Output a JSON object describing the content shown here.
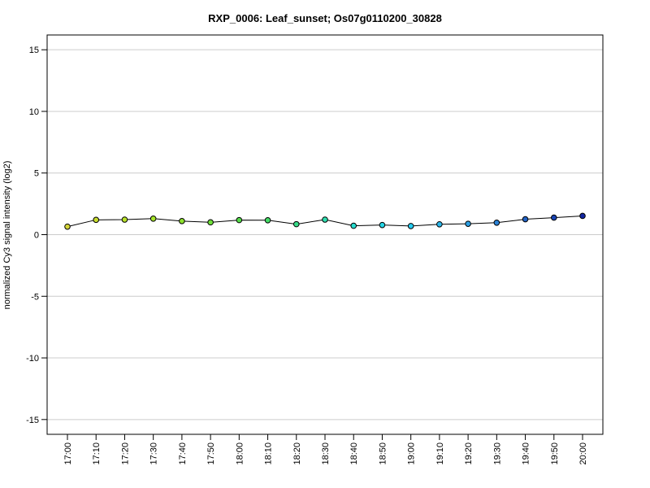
{
  "chart_data": {
    "type": "line",
    "title": "RXP_0006: Leaf_sunset; Os07g0110200_30828",
    "xlabel": "",
    "ylabel": "normalized Cy3 signal intensity (log2)",
    "ylim": [
      -16.2,
      16.2
    ],
    "yticks": [
      15,
      10,
      5,
      0,
      -5,
      -10,
      -15
    ],
    "ytick_labels": [
      "15",
      "10",
      "5",
      "0",
      "-5",
      "-10",
      "-15"
    ],
    "grid": "horizontal",
    "x": [
      "17:00",
      "17:10",
      "17:20",
      "17:30",
      "17:40",
      "17:50",
      "18:00",
      "18:10",
      "18:20",
      "18:30",
      "18:40",
      "18:50",
      "19:00",
      "19:10",
      "19:20",
      "19:30",
      "19:40",
      "19:50",
      "20:00"
    ],
    "series": [
      {
        "values": [
          0.65,
          1.2,
          1.22,
          1.3,
          1.1,
          1.0,
          1.18,
          1.17,
          0.85,
          1.22,
          0.72,
          0.78,
          0.7,
          0.84,
          0.88,
          0.97,
          1.25,
          1.38,
          1.52
        ],
        "point_colors": [
          "#d6d63a",
          "#c8dc2e",
          "#b9e22a",
          "#a6e42a",
          "#8ee22e",
          "#6fe03a",
          "#56dd4a",
          "#44dc66",
          "#38dc88",
          "#2edfb0",
          "#28dccf",
          "#26d6e6",
          "#26cdf2",
          "#2cb8ec",
          "#2c9ee2",
          "#2a82d6",
          "#2162c4",
          "#1a44b4",
          "#1226a2"
        ],
        "line_color": "#000000"
      }
    ]
  }
}
